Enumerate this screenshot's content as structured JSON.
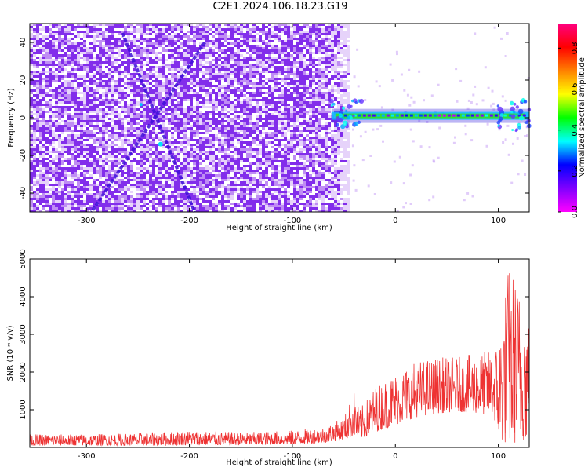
{
  "title": "C2E1.2024.106.18.23.G19",
  "colors": {
    "snr_line": "#ee3333",
    "spectrogram_bg": "#7a1fe6",
    "colormap": [
      "#ff00ff",
      "#8000ff",
      "#0000ff",
      "#00ffff",
      "#00ff00",
      "#ffff00",
      "#ff8000",
      "#ff0000",
      "#ff0080"
    ]
  },
  "chart_data": [
    {
      "type": "heatmap",
      "name": "spectrogram",
      "xlabel": "Height of straight line (km)",
      "ylabel": "Frequency (Hz)",
      "xlim": [
        -355,
        130
      ],
      "ylim": [
        -50,
        50
      ],
      "x_ticks": [
        -300,
        -200,
        -100,
        0,
        100
      ],
      "x_tick_labels": [
        "-300",
        "-200",
        "-100",
        "0",
        "100"
      ],
      "y_ticks": [
        -40,
        -20,
        0,
        20,
        40
      ],
      "y_tick_labels": [
        "-40",
        "-20",
        "0",
        "20",
        "40"
      ],
      "colorbar": {
        "label": "Normalized spectral amplitude",
        "range": [
          0,
          0.92
        ],
        "ticks": [
          0.0,
          0.2,
          0.4,
          0.6,
          0.8
        ],
        "tick_labels": [
          "0.0",
          "0.2",
          "0.4",
          "0.6",
          "0.8"
        ]
      },
      "features": {
        "noise_region_x": [
          -355,
          -45
        ],
        "carrier_line": {
          "x": [
            -62,
            130
          ],
          "frequency": 1,
          "peak_amplitude": 0.9
        },
        "diagonal_streaks": [
          {
            "x0": -265,
            "f0": 45,
            "x1": -195,
            "f1": -50
          },
          {
            "x0": -185,
            "f0": 40,
            "x1": -295,
            "f1": -50
          }
        ]
      }
    },
    {
      "type": "line",
      "name": "snr",
      "xlabel": "Height of straight line (km)",
      "ylabel": "SNR (10 * v/v)",
      "xlim": [
        -355,
        130
      ],
      "ylim": [
        0,
        5000
      ],
      "x_ticks": [
        -300,
        -200,
        -100,
        0,
        100
      ],
      "x_tick_labels": [
        "-300",
        "-200",
        "-100",
        "0",
        "100"
      ],
      "y_ticks": [
        1000,
        2000,
        3000,
        4000,
        5000
      ],
      "y_tick_labels": [
        "1000",
        "2000",
        "3000",
        "4000",
        "5000"
      ],
      "envelope": {
        "x": [
          -355,
          -300,
          -250,
          -200,
          -150,
          -100,
          -70,
          -50,
          -40,
          -35,
          -20,
          0,
          20,
          40,
          60,
          80,
          95,
          100,
          105,
          110,
          115,
          120,
          130
        ],
        "low": [
          50,
          50,
          50,
          60,
          60,
          80,
          120,
          200,
          300,
          200,
          400,
          600,
          800,
          900,
          950,
          900,
          850,
          300,
          100,
          80,
          100,
          150,
          200
        ],
        "high": [
          350,
          350,
          380,
          450,
          400,
          450,
          550,
          800,
          1500,
          1000,
          1600,
          2000,
          2300,
          2400,
          2400,
          2500,
          2600,
          2900,
          3900,
          4900,
          4700,
          4300,
          3800
        ]
      }
    }
  ]
}
